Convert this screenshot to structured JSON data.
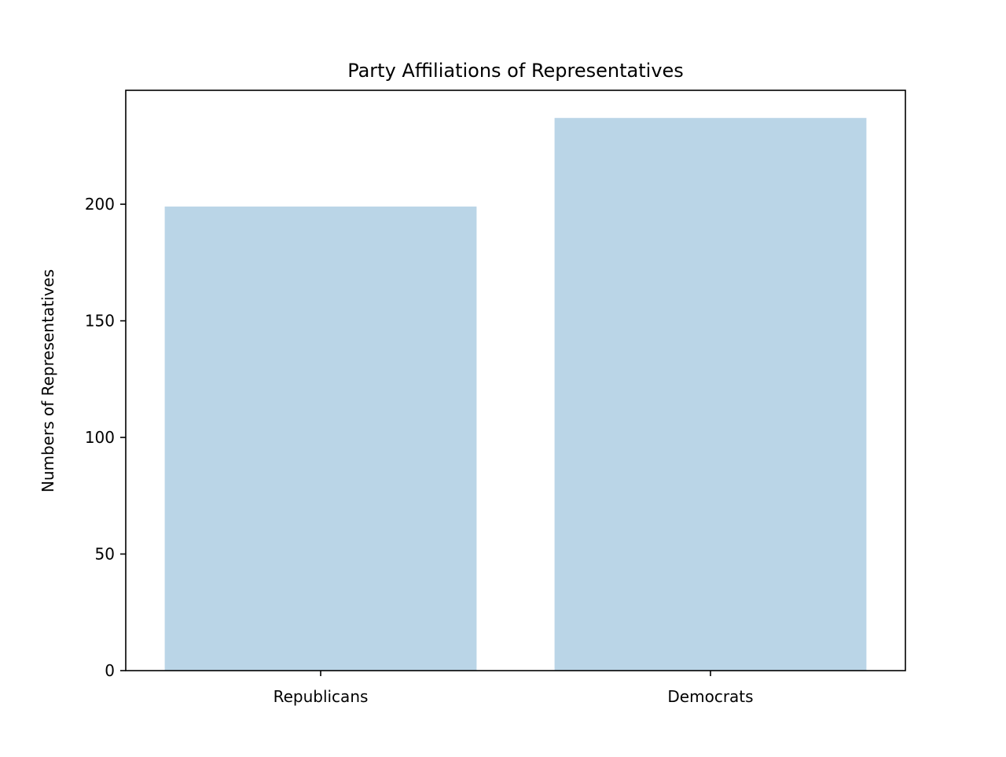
{
  "chart_data": {
    "type": "bar",
    "title": "Party Affiliations of Representatives",
    "xlabel": "",
    "ylabel": "Numbers of Representatives",
    "categories": [
      "Republicans",
      "Democrats"
    ],
    "values": [
      199,
      237
    ],
    "ylim": [
      0,
      248.85
    ],
    "yticks": [
      0,
      50,
      100,
      150,
      200
    ],
    "ytick_labels": [
      "0",
      "50",
      "100",
      "150",
      "200"
    ],
    "bar_color": "#bad5e7",
    "grid": false,
    "legend": "none"
  }
}
